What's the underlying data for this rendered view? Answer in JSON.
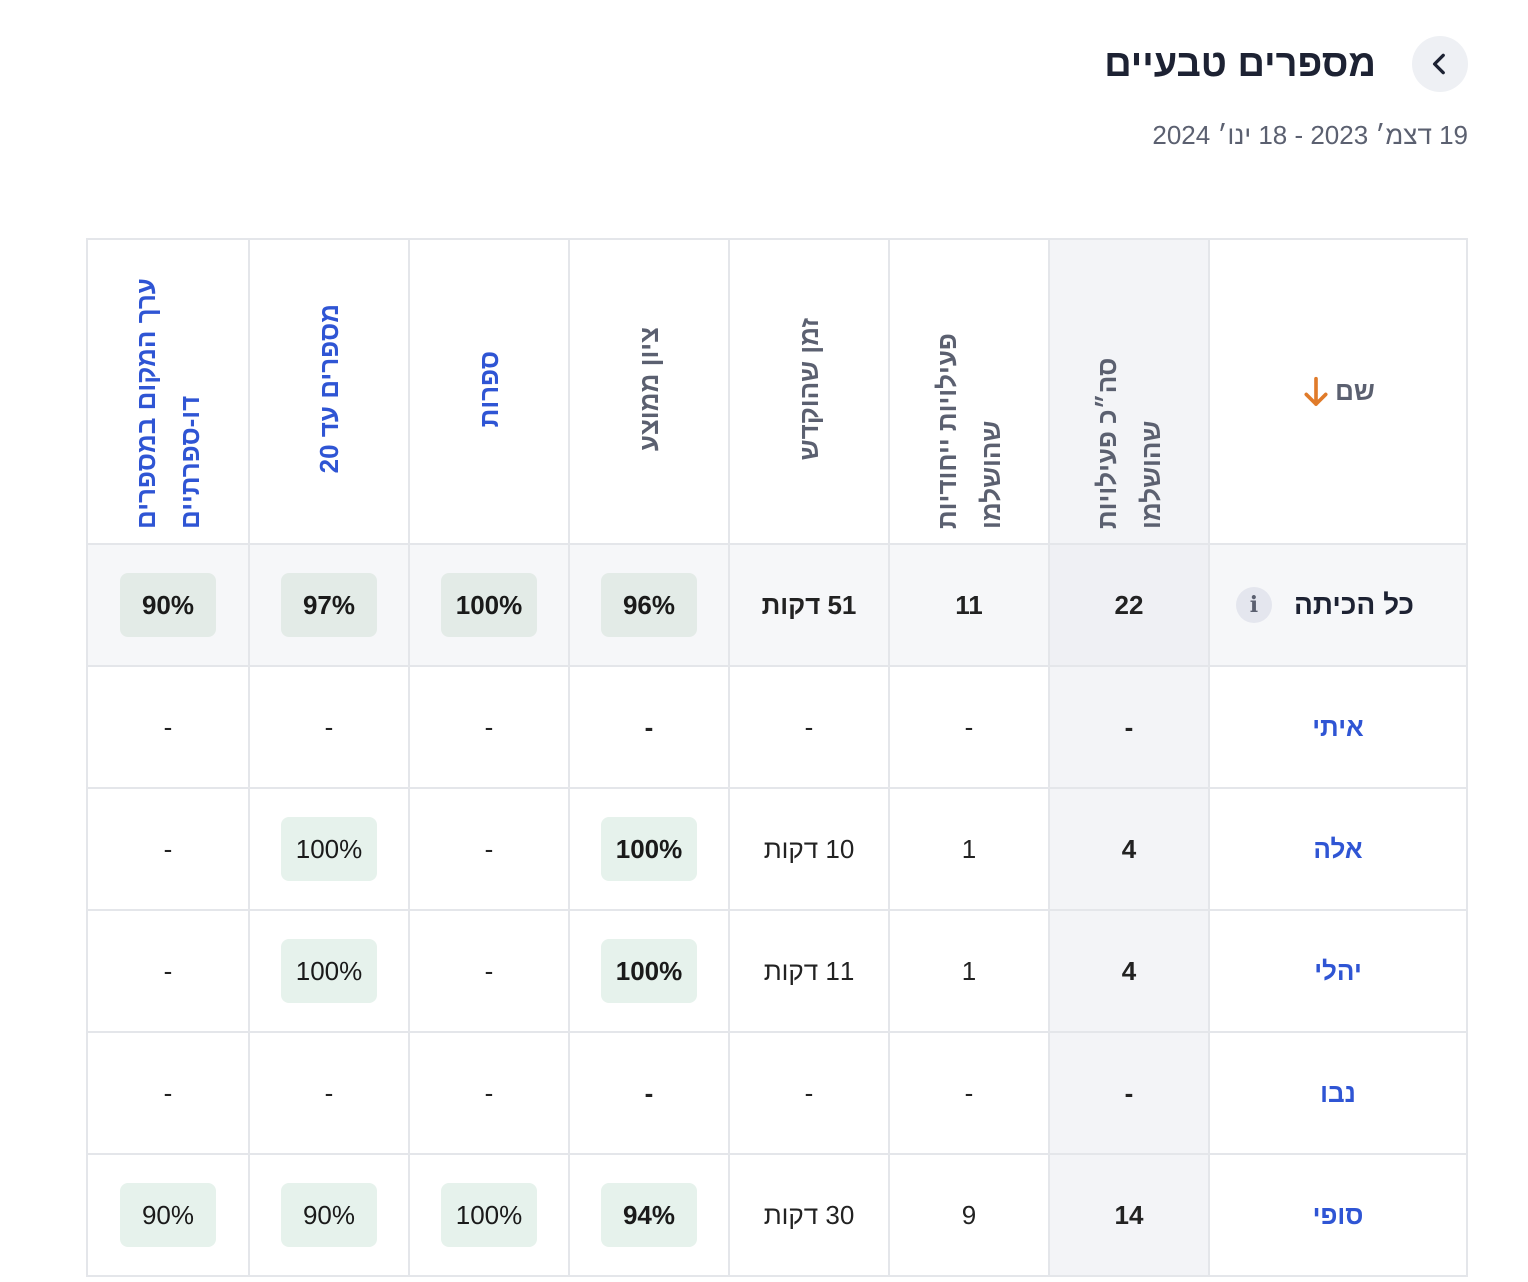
{
  "header": {
    "title": "מספרים טבעיים",
    "date_range": "19 דצמ׳ 2023 - 18 ינו׳ 2024"
  },
  "table": {
    "columns": {
      "name": "שם",
      "completed_activities": "סה״כ פעילויות שהושלמו",
      "unique_activities": "פעילויות ייחודיות שהושלמו",
      "time": "זמן שהוקדש",
      "avg_score": "ציון ממוצע",
      "digits": "ספרות",
      "numbers_20": "מספרים עד 20",
      "place_value": "ערך המקום במספרים דו-ספרתיים"
    },
    "summary": {
      "name": "כל הכיתה",
      "completed": "22",
      "unique": "11",
      "time": "51 דקות",
      "avg_score": "96%",
      "digits": "100%",
      "numbers_20": "97%",
      "place_value": "90%"
    },
    "rows": [
      {
        "name": "איתי",
        "completed": "-",
        "unique": "-",
        "time": "-",
        "avg_score": "-",
        "digits": "-",
        "numbers_20": "-",
        "place_value": "-"
      },
      {
        "name": "אלה",
        "completed": "4",
        "unique": "1",
        "time": "10 דקות",
        "avg_score": "100%",
        "digits": "-",
        "numbers_20": "100%",
        "place_value": "-"
      },
      {
        "name": "יהלי",
        "completed": "4",
        "unique": "1",
        "time": "11 דקות",
        "avg_score": "100%",
        "digits": "-",
        "numbers_20": "100%",
        "place_value": "-"
      },
      {
        "name": "נבו",
        "completed": "-",
        "unique": "-",
        "time": "-",
        "avg_score": "-",
        "digits": "-",
        "numbers_20": "-",
        "place_value": "-"
      },
      {
        "name": "סופי",
        "completed": "14",
        "unique": "9",
        "time": "30 דקות",
        "avg_score": "94%",
        "digits": "100%",
        "numbers_20": "90%",
        "place_value": "90%"
      }
    ]
  },
  "icons": {
    "back": "chevron-left-icon",
    "sort": "arrow-down-icon",
    "info": "info-icon"
  },
  "colors": {
    "accent": "#2f55d4",
    "sort_arrow": "#e07b2a",
    "pill": "#e6f2ec"
  }
}
